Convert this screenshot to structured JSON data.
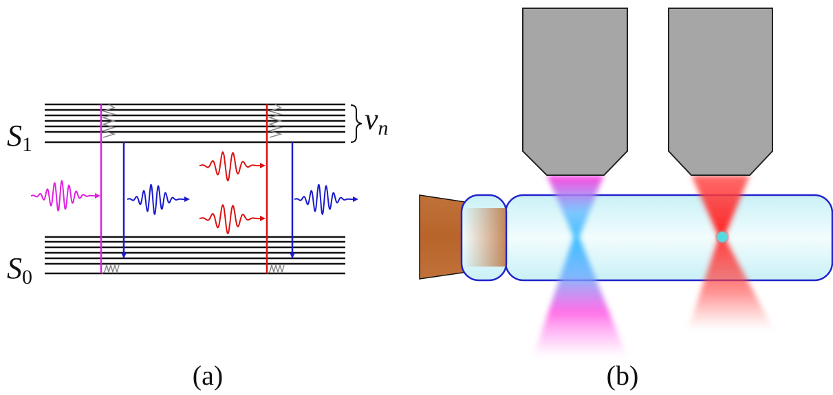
{
  "panel_a": {
    "upper_state": {
      "symbol": "S",
      "subscript": "1"
    },
    "lower_state": {
      "symbol": "S",
      "subscript": "0"
    },
    "vibrational_label": {
      "symbol": "ν",
      "subscript": "n"
    },
    "caption": "(a)"
  },
  "panel_b": {
    "caption": "(b)"
  }
}
